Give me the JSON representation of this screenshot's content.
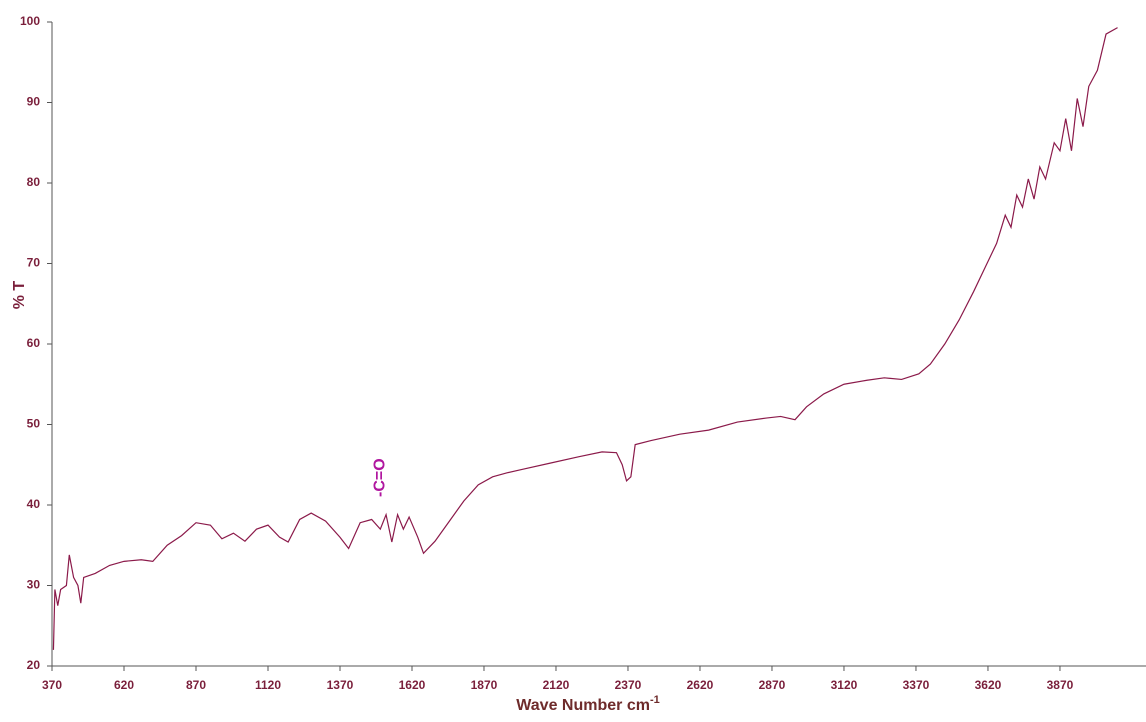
{
  "chart_data": {
    "type": "line",
    "xlabel": "Wave Number cm",
    "xlabel_superscript": "-1",
    "ylabel": "% T",
    "annotation": {
      "text": "-C=O",
      "x": 1510,
      "y": 41
    },
    "xlim": [
      370,
      4150
    ],
    "ylim": [
      20,
      100
    ],
    "xticks": [
      370,
      620,
      870,
      1120,
      1370,
      1620,
      1870,
      2120,
      2370,
      2620,
      2870,
      3120,
      3370,
      3620,
      3870
    ],
    "yticks": [
      20,
      30,
      40,
      50,
      60,
      70,
      80,
      90,
      100
    ],
    "grid": false,
    "series": [
      {
        "name": "%T",
        "color": "#8b1a4a",
        "x": [
          375,
          380,
          390,
          400,
          420,
          430,
          445,
          460,
          470,
          480,
          520,
          570,
          620,
          680,
          720,
          770,
          820,
          870,
          920,
          960,
          1000,
          1040,
          1080,
          1120,
          1160,
          1190,
          1230,
          1270,
          1320,
          1370,
          1400,
          1440,
          1480,
          1510,
          1530,
          1550,
          1570,
          1590,
          1610,
          1640,
          1660,
          1700,
          1750,
          1800,
          1850,
          1900,
          1950,
          2000,
          2100,
          2200,
          2280,
          2330,
          2350,
          2365,
          2380,
          2395,
          2450,
          2550,
          2650,
          2750,
          2850,
          2900,
          2950,
          2990,
          3050,
          3120,
          3200,
          3260,
          3320,
          3380,
          3420,
          3470,
          3520,
          3570,
          3610,
          3650,
          3680,
          3700,
          3720,
          3740,
          3760,
          3780,
          3800,
          3820,
          3850,
          3870,
          3890,
          3910,
          3930,
          3950,
          3970,
          4000,
          4030,
          4070
        ],
        "values": [
          22,
          29.5,
          27.5,
          29.5,
          30,
          33.8,
          31,
          30,
          27.8,
          31,
          31.5,
          32.5,
          33,
          33.2,
          33,
          35,
          36.2,
          37.8,
          37.5,
          35.8,
          36.5,
          35.5,
          37,
          37.5,
          36,
          35.4,
          38.2,
          39,
          38,
          36,
          34.6,
          37.8,
          38.2,
          37,
          38.8,
          35.4,
          38.8,
          37,
          38.5,
          36,
          34,
          35.5,
          38,
          40.5,
          42.5,
          43.5,
          44,
          44.4,
          45.2,
          46,
          46.6,
          46.5,
          45,
          43,
          43.5,
          47.5,
          48,
          48.8,
          49.3,
          50.3,
          50.8,
          51,
          50.6,
          52.2,
          53.8,
          55,
          55.5,
          55.8,
          55.6,
          56.3,
          57.5,
          60,
          63,
          66.5,
          69.5,
          72.5,
          76,
          74.5,
          78.5,
          77,
          80.5,
          78,
          82,
          80.5,
          85,
          84,
          88,
          84,
          90.5,
          87,
          92,
          94,
          98.5,
          99.3
        ]
      }
    ]
  }
}
